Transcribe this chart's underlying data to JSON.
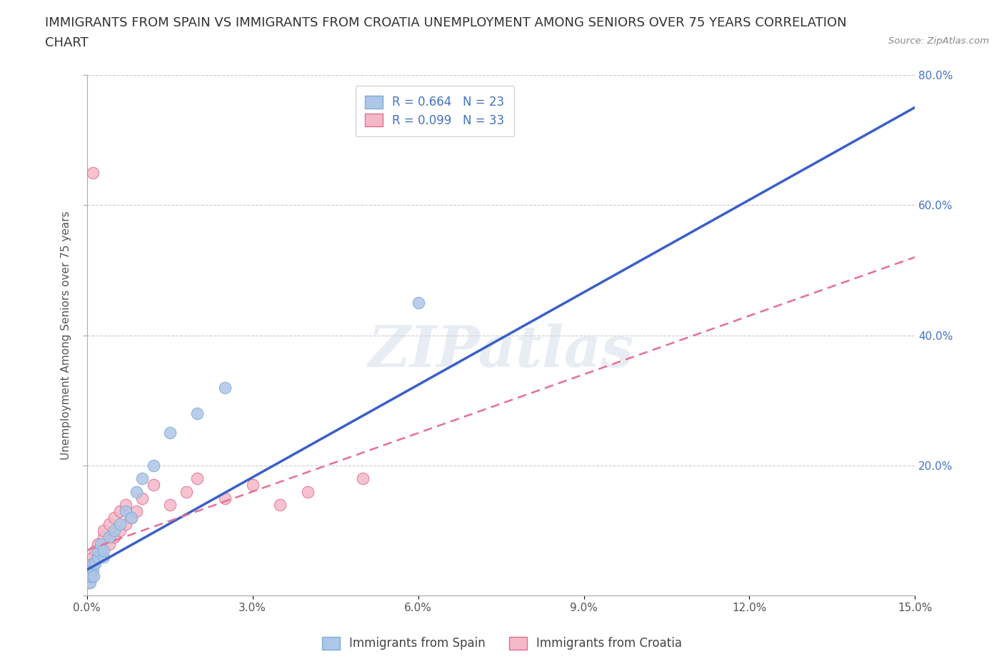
{
  "title_line1": "IMMIGRANTS FROM SPAIN VS IMMIGRANTS FROM CROATIA UNEMPLOYMENT AMONG SENIORS OVER 75 YEARS CORRELATION",
  "title_line2": "CHART",
  "source": "Source: ZipAtlas.com",
  "ylabel": "Unemployment Among Seniors over 75 years",
  "xlim": [
    0.0,
    0.15
  ],
  "ylim": [
    0.0,
    0.8
  ],
  "xticks": [
    0.0,
    0.03,
    0.06,
    0.09,
    0.12,
    0.15
  ],
  "xtick_labels": [
    "0.0%",
    "3.0%",
    "6.0%",
    "9.0%",
    "12.0%",
    "15.0%"
  ],
  "yticks": [
    0.0,
    0.2,
    0.4,
    0.6,
    0.8
  ],
  "ytick_labels_right": [
    "",
    "20.0%",
    "40.0%",
    "60.0%",
    "80.0%"
  ],
  "spain_color": "#aec6e8",
  "spain_edge": "#7bafd4",
  "croatia_color": "#f5b8c8",
  "croatia_edge": "#e07090",
  "spain_line_color": "#3a5fc8",
  "croatia_line_color": "#e87090",
  "spain_R": 0.664,
  "spain_N": 23,
  "croatia_R": 0.099,
  "croatia_N": 33,
  "legend_label_spain": "Immigrants from Spain",
  "legend_label_croatia": "Immigrants from Croatia",
  "watermark": "ZIPatlas",
  "spain_x": [
    0.0005,
    0.0008,
    0.001,
    0.001,
    0.0012,
    0.0015,
    0.002,
    0.002,
    0.0025,
    0.003,
    0.003,
    0.004,
    0.005,
    0.006,
    0.007,
    0.008,
    0.009,
    0.01,
    0.012,
    0.015,
    0.02,
    0.025,
    0.06
  ],
  "spain_y": [
    0.02,
    0.03,
    0.04,
    0.05,
    0.03,
    0.05,
    0.06,
    0.07,
    0.08,
    0.06,
    0.07,
    0.09,
    0.1,
    0.11,
    0.13,
    0.12,
    0.16,
    0.18,
    0.2,
    0.25,
    0.28,
    0.32,
    0.45
  ],
  "croatia_x": [
    0.0003,
    0.0005,
    0.0007,
    0.001,
    0.001,
    0.0012,
    0.0015,
    0.002,
    0.002,
    0.0025,
    0.003,
    0.003,
    0.004,
    0.004,
    0.005,
    0.005,
    0.006,
    0.006,
    0.007,
    0.007,
    0.008,
    0.009,
    0.01,
    0.012,
    0.015,
    0.018,
    0.02,
    0.025,
    0.03,
    0.035,
    0.04,
    0.05,
    0.001
  ],
  "croatia_y": [
    0.02,
    0.03,
    0.04,
    0.05,
    0.06,
    0.05,
    0.07,
    0.06,
    0.08,
    0.07,
    0.09,
    0.1,
    0.08,
    0.11,
    0.09,
    0.12,
    0.1,
    0.13,
    0.11,
    0.14,
    0.12,
    0.13,
    0.15,
    0.17,
    0.14,
    0.16,
    0.18,
    0.15,
    0.17,
    0.14,
    0.16,
    0.18,
    0.65
  ],
  "grid_color": "#cccccc",
  "bg_color": "#ffffff",
  "title_fontsize": 13,
  "axis_label_fontsize": 11,
  "tick_fontsize": 11,
  "legend_fontsize": 12,
  "spain_line_x0": 0.0,
  "spain_line_y0": 0.04,
  "spain_line_x1": 0.15,
  "spain_line_y1": 0.75,
  "croatia_line_x0": 0.0,
  "croatia_line_y0": 0.07,
  "croatia_line_x1": 0.15,
  "croatia_line_y1": 0.52
}
